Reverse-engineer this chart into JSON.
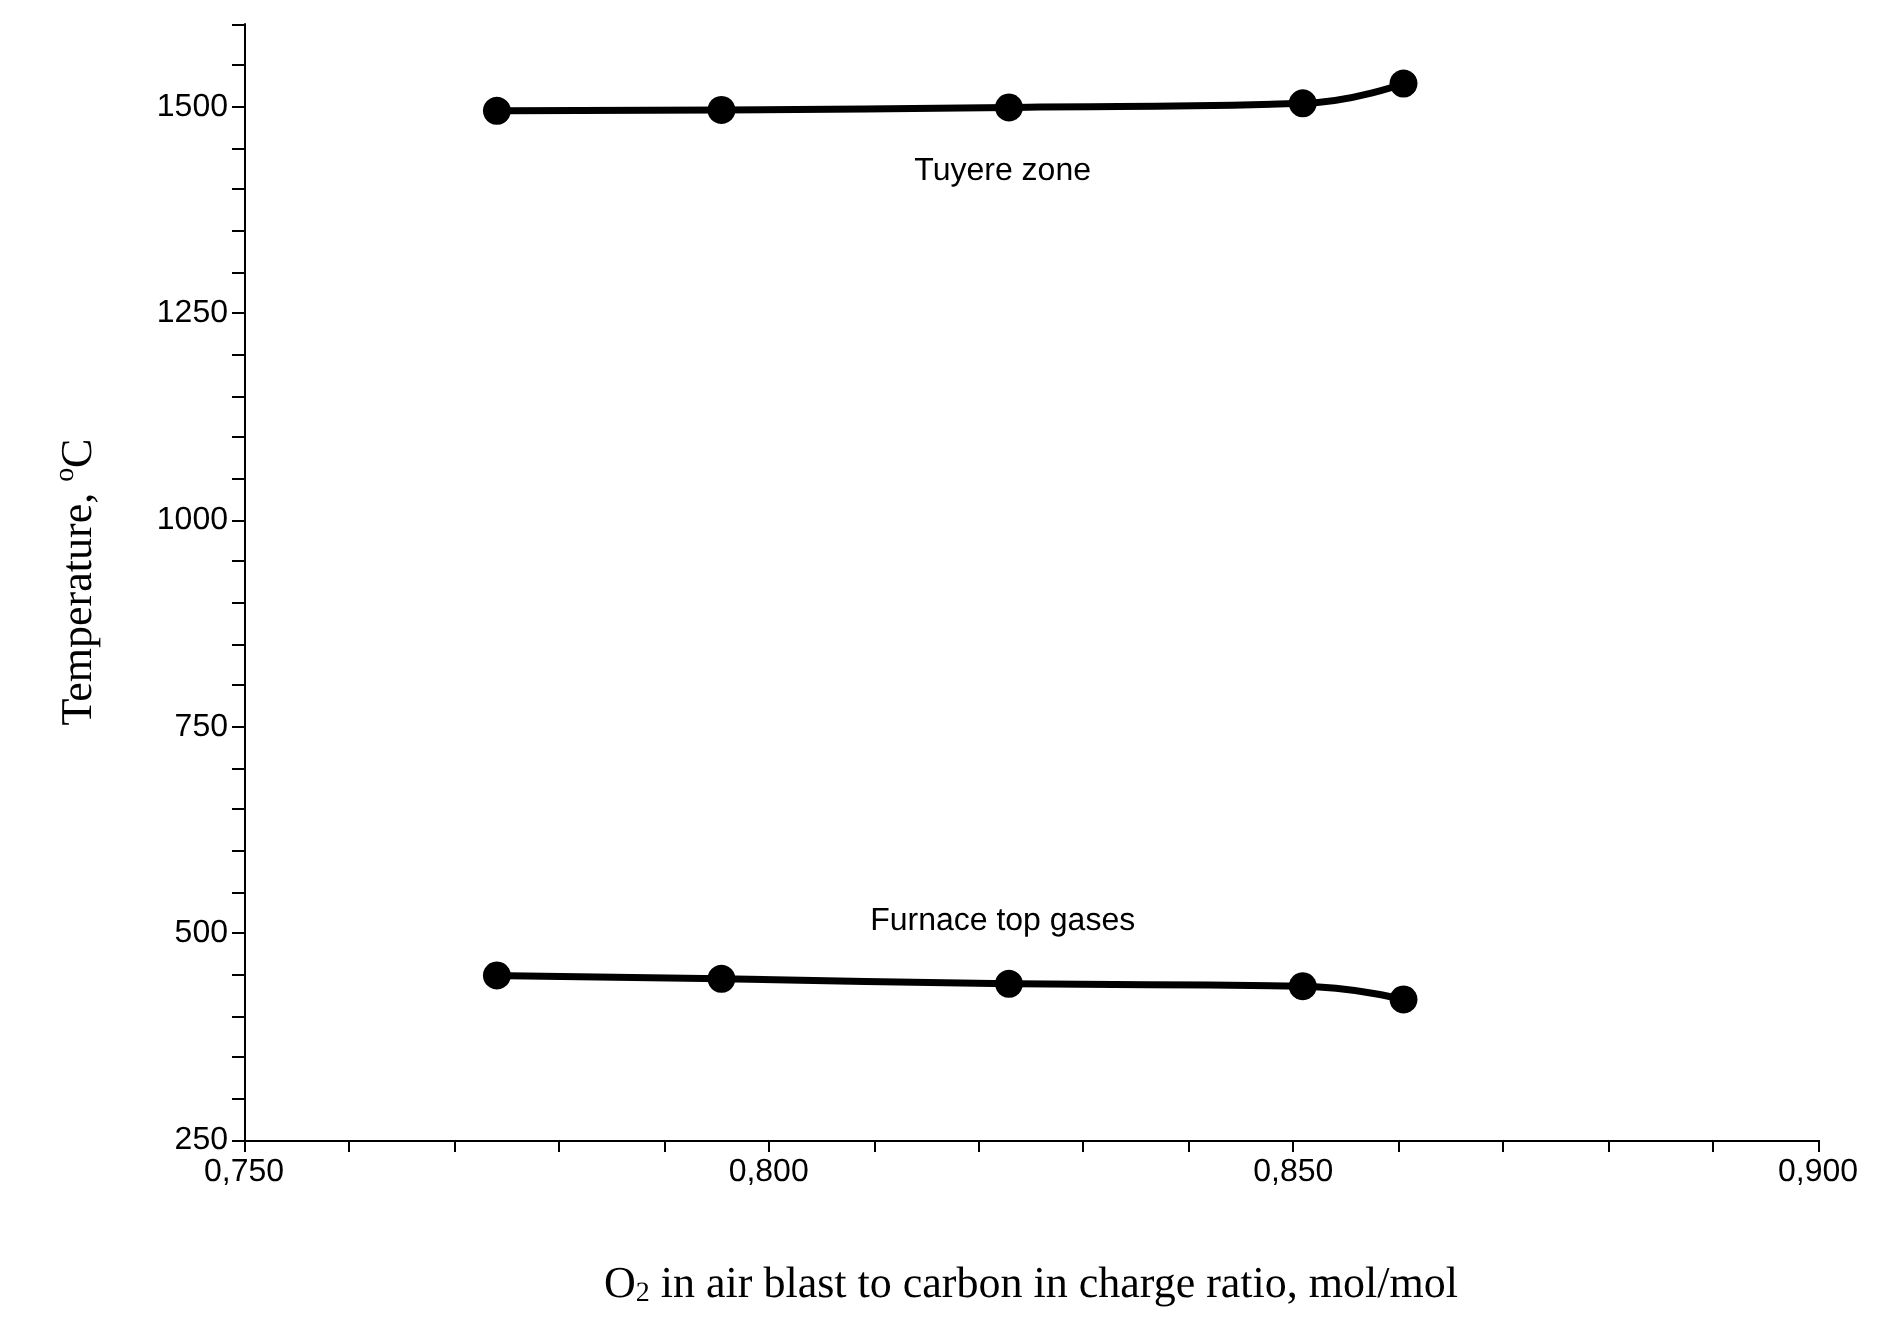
{
  "chart_data": {
    "type": "line",
    "xlabel": "O$_{2}$ in air blast to carbon in charge ratio, mol/mol",
    "ylabel": "Temperature, $^{o}$C",
    "xlim": [
      0.75,
      0.9
    ],
    "xticks": [
      {
        "value": 0.75,
        "label": "0,750"
      },
      {
        "value": 0.76,
        "label": null
      },
      {
        "value": 0.77,
        "label": null
      },
      {
        "value": 0.78,
        "label": null
      },
      {
        "value": 0.79,
        "label": null
      },
      {
        "value": 0.8,
        "label": "0,800"
      },
      {
        "value": 0.81,
        "label": null
      },
      {
        "value": 0.82,
        "label": null
      },
      {
        "value": 0.83,
        "label": null
      },
      {
        "value": 0.84,
        "label": null
      },
      {
        "value": 0.85,
        "label": "0,850"
      },
      {
        "value": 0.86,
        "label": null
      },
      {
        "value": 0.87,
        "label": null
      },
      {
        "value": 0.88,
        "label": null
      },
      {
        "value": 0.89,
        "label": null
      },
      {
        "value": 0.9,
        "label": "0,900"
      }
    ],
    "ylim": [
      250,
      1600
    ],
    "yticks": [
      250,
      {
        "value": 300,
        "label": null
      },
      {
        "value": 350,
        "label": null
      },
      {
        "value": 400,
        "label": null
      },
      {
        "value": 450,
        "label": null
      },
      500,
      {
        "value": 550,
        "label": null
      },
      {
        "value": 600,
        "label": null
      },
      {
        "value": 650,
        "label": null
      },
      {
        "value": 700,
        "label": null
      },
      750,
      {
        "value": 800,
        "label": null
      },
      {
        "value": 850,
        "label": null
      },
      {
        "value": 900,
        "label": null
      },
      {
        "value": 950,
        "label": null
      },
      1000,
      {
        "value": 1050,
        "label": null
      },
      {
        "value": 1100,
        "label": null
      },
      {
        "value": 1150,
        "label": null
      },
      {
        "value": 1200,
        "label": null
      },
      1250,
      {
        "value": 1300,
        "label": null
      },
      {
        "value": 1350,
        "label": null
      },
      {
        "value": 1400,
        "label": null
      },
      {
        "value": 1450,
        "label": null
      },
      1500,
      {
        "value": 1550,
        "label": null
      },
      {
        "value": 1600,
        "label": null
      }
    ],
    "x": [
      0.7741,
      0.7955,
      0.8229,
      0.8509,
      0.8605
    ],
    "series": [
      {
        "name": "Tuyere zone",
        "color": "#000000",
        "values": [
          1495,
          1496,
          1499,
          1504,
          1528
        ]
      },
      {
        "name": "Furnace top gases",
        "color": "#000000",
        "values": [
          449,
          445,
          439,
          436,
          420
        ]
      }
    ],
    "marker": "circle",
    "line_style": "solid",
    "grid": false,
    "legend": false
  }
}
